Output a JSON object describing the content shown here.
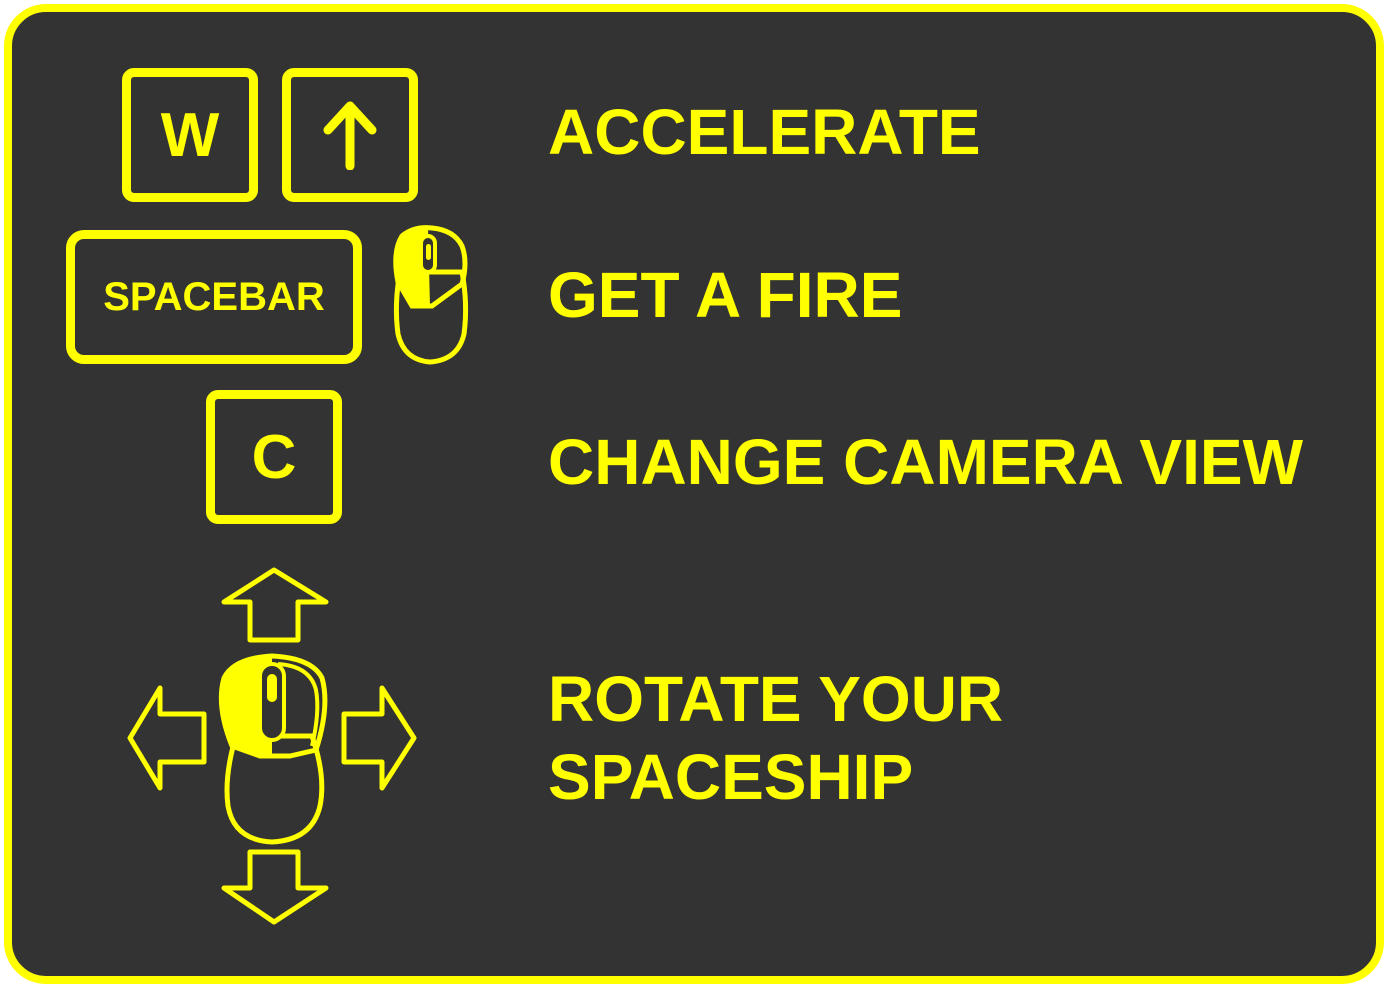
{
  "colors": {
    "accent": "#ffff00",
    "panel_bg": "#333333"
  },
  "controls": [
    {
      "keys": [
        "W",
        "up-arrow-icon"
      ],
      "action": "ACCELERATE"
    },
    {
      "keys": [
        "SPACEBAR",
        "mouse-left-click-icon"
      ],
      "action": "GET A FIRE"
    },
    {
      "keys": [
        "C"
      ],
      "action": "CHANGE CAMERA VIEW"
    },
    {
      "keys": [
        "mouse-move-icon"
      ],
      "action_lines": [
        "ROTATE YOUR",
        "SPACESHIP"
      ]
    }
  ],
  "keys": {
    "w": "W",
    "space": "SPACEBAR",
    "c": "C"
  },
  "actions": {
    "accelerate": "ACCELERATE",
    "fire": "GET A FIRE",
    "camera": "CHANGE CAMERA VIEW",
    "rotate_line1": "ROTATE YOUR",
    "rotate_line2": "SPACESHIP"
  }
}
